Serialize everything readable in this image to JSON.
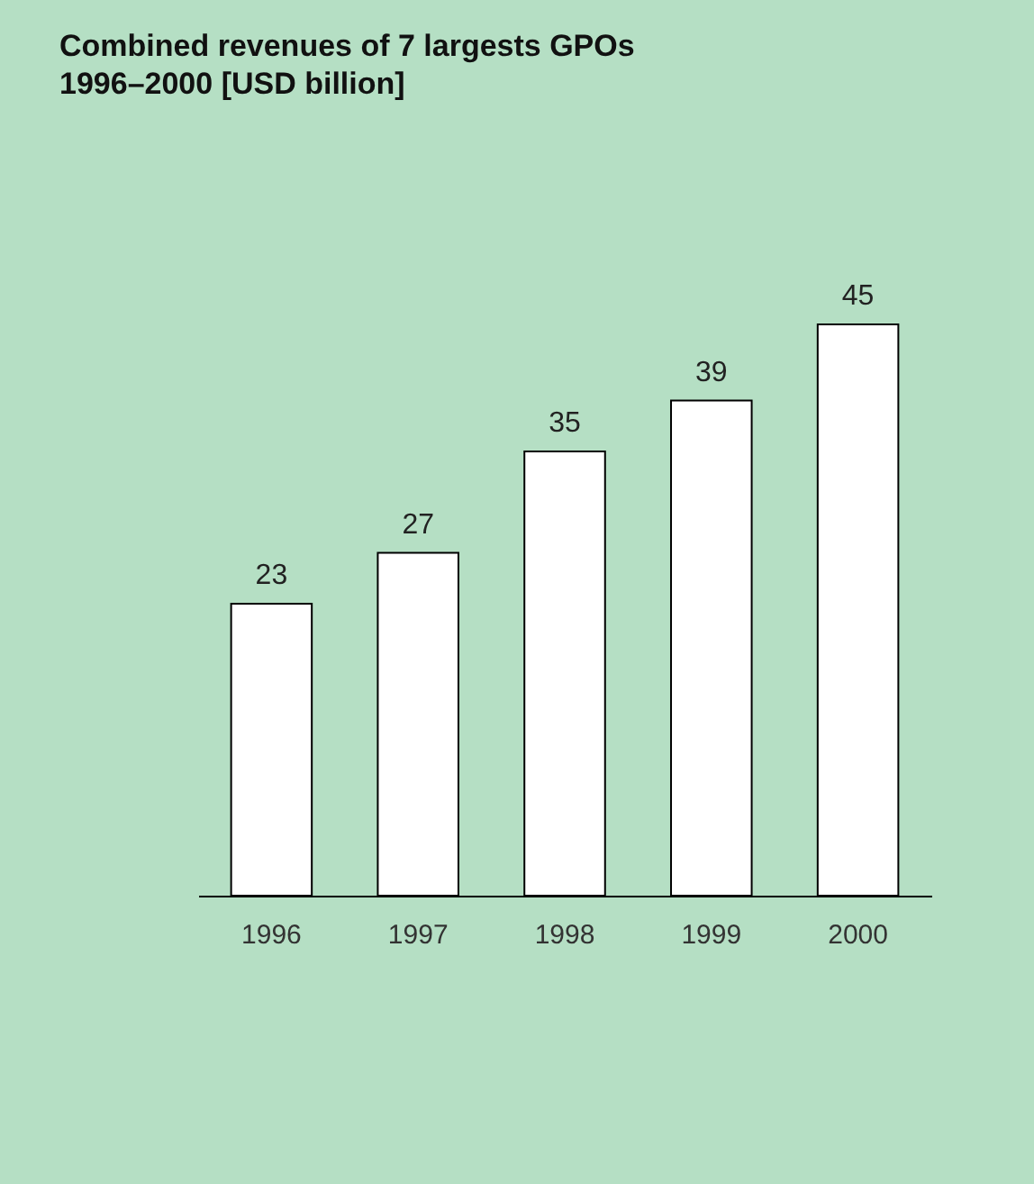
{
  "chart_data": {
    "type": "bar",
    "title": "Combined revenues of 7 largests GPOs",
    "subtitle": "1996–2000 [USD billion]",
    "categories": [
      "1996",
      "1997",
      "1998",
      "1999",
      "2000"
    ],
    "values": [
      23,
      27,
      35,
      39,
      45
    ],
    "color": "#ffffff",
    "data_labels": true,
    "grid": false
  }
}
